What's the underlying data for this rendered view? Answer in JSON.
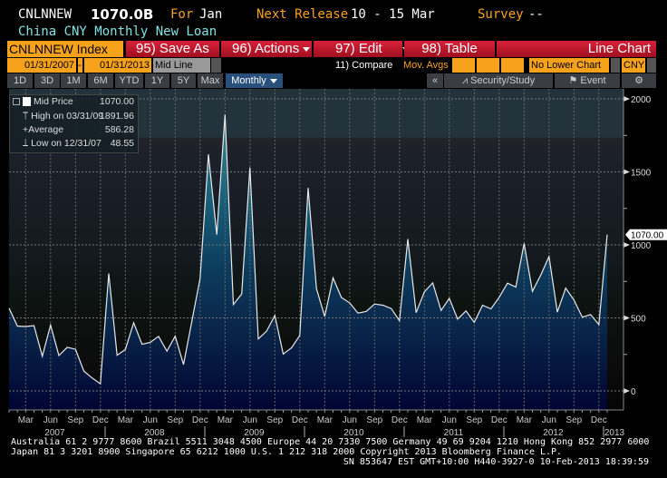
{
  "header": {
    "ticker": "CNLNNEW",
    "value": "1070.0B",
    "for_label": "For",
    "for_value": "Jan",
    "next_release_label": "Next Release",
    "next_release_value": "10 - 15 Mar",
    "survey_label": "Survey",
    "survey_value": "--",
    "subtitle": "China CNY Monthly New Loan"
  },
  "toolbar": {
    "security": "CNLNNEW Index",
    "save_as": "95) Save As",
    "actions": "96) Actions",
    "edit": "97) Edit",
    "table": "98) Table",
    "chart_type": "Line Chart"
  },
  "controls": {
    "start_date": "01/31/2007",
    "dash": "-",
    "end_date": "01/31/2013",
    "line_type": "Mid Line",
    "compare": "11) Compare",
    "mov_avgs": "Mov. Avgs",
    "lower_chart": "No Lower Chart",
    "currency": "CNY"
  },
  "periods": [
    "1D",
    "3D",
    "1M",
    "6M",
    "YTD",
    "1Y",
    "5Y",
    "Max"
  ],
  "frequency": "Monthly",
  "right_tools": {
    "collapse": "«",
    "security_study": "Security/Study",
    "event": "Event"
  },
  "legend": {
    "mid_label": "Mid Price",
    "mid_value": "1070.00",
    "high_label": "High on 03/31/09",
    "high_value": "1891.96",
    "avg_label": "Average",
    "avg_value": "586.28",
    "low_label": "Low on 12/31/07",
    "low_value": "48.55"
  },
  "colors": {
    "accent_orange": "#f7a21b",
    "toolbar_red": "#c8172f",
    "line": "#e8e8e8",
    "area_top": "#1f7388",
    "area_bottom": "#000634"
  },
  "chart_data": {
    "type": "area",
    "start": "2007-01",
    "frequency": "monthly",
    "x": [
      "2007-01",
      "2007-02",
      "2007-03",
      "2007-04",
      "2007-05",
      "2007-06",
      "2007-07",
      "2007-08",
      "2007-09",
      "2007-10",
      "2007-11",
      "2007-12",
      "2008-01",
      "2008-02",
      "2008-03",
      "2008-04",
      "2008-05",
      "2008-06",
      "2008-07",
      "2008-08",
      "2008-09",
      "2008-10",
      "2008-11",
      "2008-12",
      "2009-01",
      "2009-02",
      "2009-03",
      "2009-04",
      "2009-05",
      "2009-06",
      "2009-07",
      "2009-08",
      "2009-09",
      "2009-10",
      "2009-11",
      "2009-12",
      "2010-01",
      "2010-02",
      "2010-03",
      "2010-04",
      "2010-05",
      "2010-06",
      "2010-07",
      "2010-08",
      "2010-09",
      "2010-10",
      "2010-11",
      "2010-12",
      "2011-01",
      "2011-02",
      "2011-03",
      "2011-04",
      "2011-05",
      "2011-06",
      "2011-07",
      "2011-08",
      "2011-09",
      "2011-10",
      "2011-11",
      "2011-12",
      "2012-01",
      "2012-02",
      "2012-03",
      "2012-04",
      "2012-05",
      "2012-06",
      "2012-07",
      "2012-08",
      "2012-09",
      "2012-10",
      "2012-11",
      "2012-12",
      "2013-01"
    ],
    "values": [
      567,
      444,
      441,
      447,
      237,
      451,
      242,
      299,
      285,
      136,
      88,
      48.55,
      804,
      244,
      283,
      467,
      319,
      332,
      373,
      272,
      375,
      181,
      477,
      772,
      1620,
      1070,
      1891.96,
      592,
      664,
      1530,
      356,
      410,
      517,
      253,
      295,
      380,
      1390,
      700,
      510,
      774,
      640,
      603,
      533,
      545,
      595,
      587,
      564,
      481,
      1040,
      536,
      679,
      740,
      551,
      634,
      492,
      548,
      470,
      587,
      562,
      641,
      738,
      711,
      1010,
      682,
      793,
      920,
      540,
      704,
      623,
      505,
      523,
      454,
      1070
    ],
    "ylim": [
      -100,
      2000
    ],
    "yticks": [
      0,
      500,
      1000,
      1500,
      2000
    ],
    "ytick_labels": [
      "0",
      "500",
      "1000",
      "1500",
      "2000"
    ],
    "month_labels": [
      "Mar",
      "Jun",
      "Sep",
      "Dec"
    ],
    "year_labels": [
      "2007",
      "2008",
      "2009",
      "2010",
      "2011",
      "2012",
      "2013"
    ],
    "last_value_label": "1070.00",
    "grid": true,
    "legend_placement": "top-left"
  },
  "footer": {
    "line1": "Australia 61 2 9777 8600 Brazil 5511 3048 4500 Europe 44 20 7330 7500 Germany 49 69 9204 1210 Hong Kong 852 2977 6000",
    "line2": "Japan 81 3 3201 8900      Singapore 65 6212 1000      U.S. 1 212 318 2000        Copyright 2013 Bloomberg Finance L.P.",
    "line3": "SN 853647 EST  GMT+10:00 H440-3927-0 10-Feb-2013 18:39:59"
  }
}
